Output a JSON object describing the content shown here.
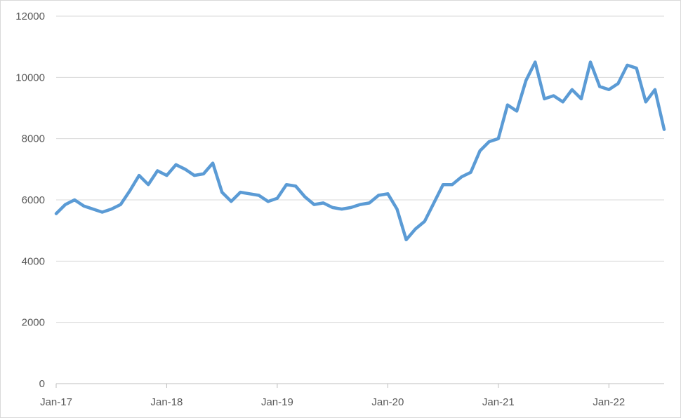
{
  "chart_data": {
    "type": "line",
    "title": "",
    "xlabel": "",
    "ylabel": "",
    "ylim": [
      0,
      12000
    ],
    "yticks": [
      0,
      2000,
      4000,
      6000,
      8000,
      10000,
      12000
    ],
    "xticks": [
      {
        "label": "Jan-17",
        "date": "2017-01"
      },
      {
        "label": "Jan-18",
        "date": "2018-01"
      },
      {
        "label": "Jan-19",
        "date": "2019-01"
      },
      {
        "label": "Jan-20",
        "date": "2020-01"
      },
      {
        "label": "Jan-21",
        "date": "2021-01"
      },
      {
        "label": "Jan-22",
        "date": "2022-01"
      }
    ],
    "xlim": [
      "2017-01",
      "2022-07"
    ],
    "grid": "horizontal",
    "legend": "none",
    "line_color": "#5B9BD5",
    "series": [
      {
        "x": [
          "2017-01",
          "2017-02",
          "2017-03",
          "2017-04",
          "2017-05",
          "2017-06",
          "2017-07",
          "2017-08",
          "2017-09",
          "2017-10",
          "2017-11",
          "2017-12",
          "2018-01",
          "2018-02",
          "2018-03",
          "2018-04",
          "2018-05",
          "2018-06",
          "2018-07",
          "2018-08",
          "2018-09",
          "2018-10",
          "2018-11",
          "2018-12",
          "2019-01",
          "2019-02",
          "2019-03",
          "2019-04",
          "2019-05",
          "2019-06",
          "2019-07",
          "2019-08",
          "2019-09",
          "2019-10",
          "2019-11",
          "2019-12",
          "2020-01",
          "2020-02",
          "2020-03",
          "2020-04",
          "2020-05",
          "2020-06",
          "2020-07",
          "2020-08",
          "2020-09",
          "2020-10",
          "2020-11",
          "2020-12",
          "2021-01",
          "2021-02",
          "2021-03",
          "2021-04",
          "2021-05",
          "2021-06",
          "2021-07",
          "2021-08",
          "2021-09",
          "2021-10",
          "2021-11",
          "2021-12",
          "2022-01",
          "2022-02",
          "2022-03",
          "2022-04",
          "2022-05",
          "2022-06",
          "2022-07"
        ],
        "values": [
          5550,
          5850,
          6000,
          5800,
          5700,
          5600,
          5700,
          5850,
          6300,
          6800,
          6500,
          6950,
          6800,
          7150,
          7000,
          6800,
          6850,
          7200,
          6250,
          5950,
          6250,
          6200,
          6150,
          5950,
          6050,
          6500,
          6450,
          6100,
          5850,
          5900,
          5750,
          5700,
          5750,
          5850,
          5900,
          6150,
          6200,
          5700,
          4700,
          5050,
          5300,
          5900,
          6500,
          6500,
          6750,
          6900,
          7600,
          7900,
          8000,
          9100,
          8900,
          9900,
          10500,
          9300,
          9400,
          9200,
          9600,
          9300,
          10500,
          9700,
          9600,
          9800,
          10400,
          10300,
          9200,
          9600,
          8300
        ]
      }
    ]
  }
}
